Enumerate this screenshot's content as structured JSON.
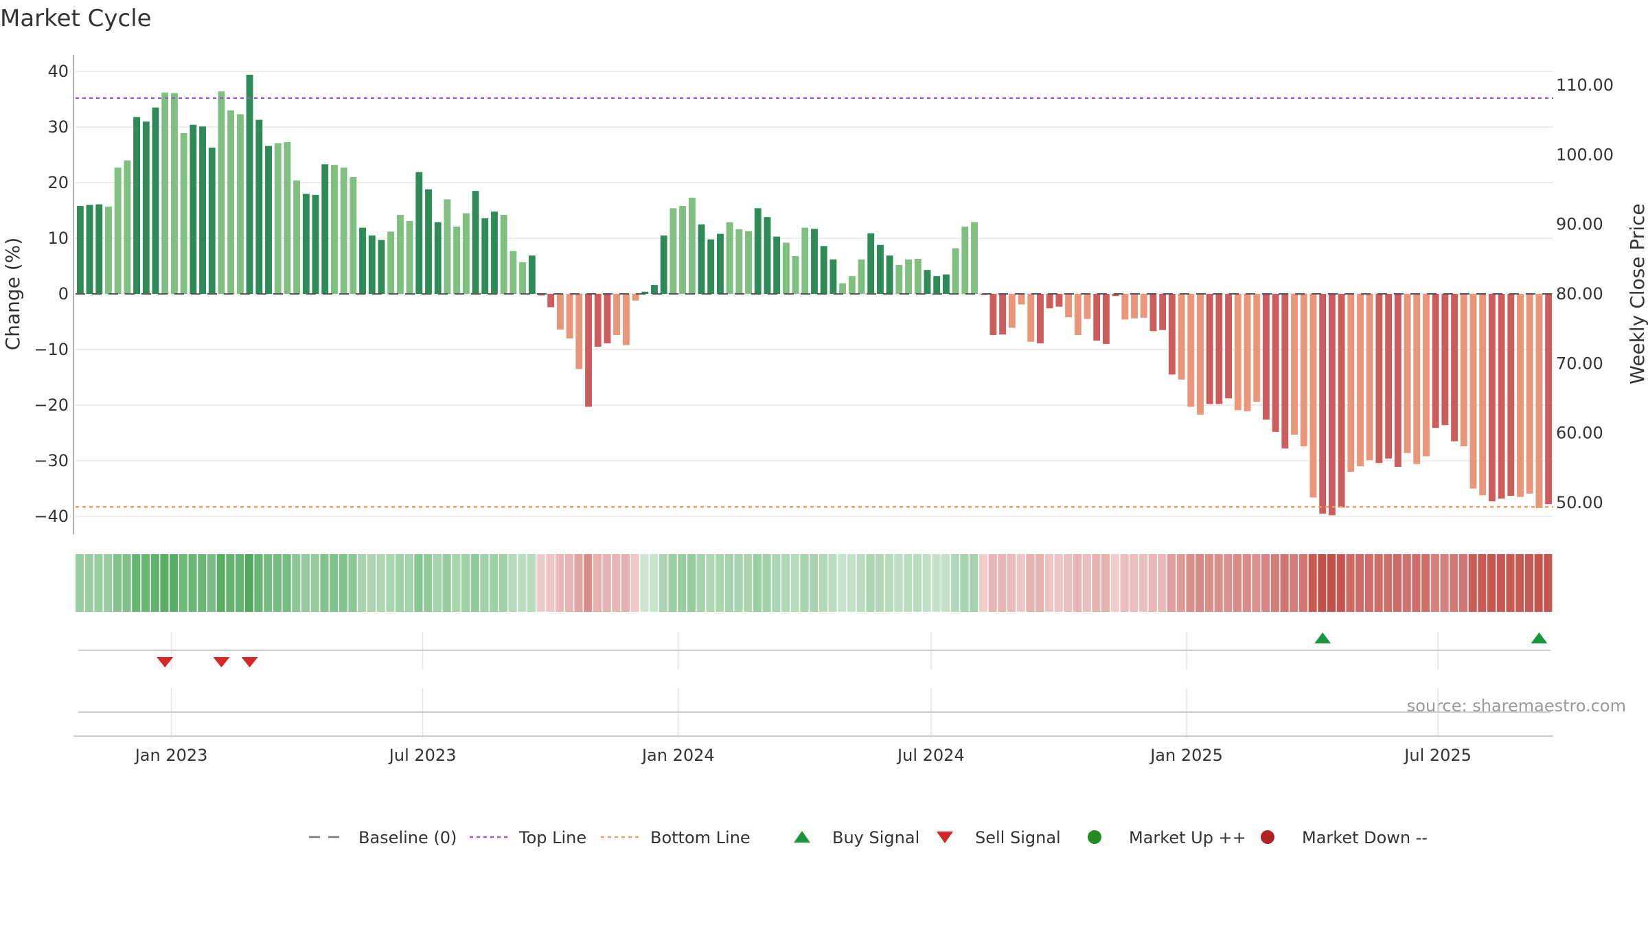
{
  "chart_data": {
    "type": "bar",
    "title": "Market Cycle",
    "ylabel_left": "Change (%)",
    "ylabel_right": "Weekly Close Price",
    "ylim_left": [
      -43,
      43
    ],
    "left_ticks": [
      40,
      30,
      20,
      10,
      0,
      -10,
      -20,
      -30,
      -40
    ],
    "left_tick_labels": [
      "40",
      "30",
      "20",
      "10",
      "0",
      "−10",
      "−20",
      "−30",
      "−40"
    ],
    "right_ticks": [
      110,
      100,
      90,
      80,
      70,
      60,
      50
    ],
    "right_tick_labels": [
      "110.00",
      "100.00",
      "90.00",
      "80.00",
      "70.00",
      "60.00",
      "50.00"
    ],
    "x_start": "2022-10-24",
    "x_end": "2025-09-22",
    "x_ticks": [
      "2023-01-01",
      "2023-07-01",
      "2024-01-01",
      "2024-07-01",
      "2025-01-01",
      "2025-07-01"
    ],
    "x_tick_labels": [
      "Jan 2023",
      "Jul 2023",
      "Jan 2024",
      "Jul 2024",
      "Jan 2025",
      "Jul 2025"
    ],
    "top_line": 35.2,
    "bottom_line": -38.3,
    "baseline": 0,
    "grid": true,
    "values": [
      15.8,
      16.0,
      16.1,
      15.7,
      22.7,
      24.0,
      31.8,
      31.0,
      33.5,
      36.2,
      36.1,
      28.9,
      30.4,
      30.1,
      26.3,
      36.4,
      33.0,
      32.3,
      39.4,
      31.3,
      26.6,
      27.1,
      27.3,
      20.4,
      18.0,
      17.8,
      23.3,
      23.2,
      22.7,
      21.0,
      11.9,
      10.5,
      9.7,
      11.2,
      14.2,
      13.1,
      21.9,
      18.8,
      12.9,
      17.0,
      12.1,
      14.5,
      18.5,
      13.6,
      14.8,
      14.2,
      7.7,
      5.7,
      6.9,
      -0.3,
      -2.4,
      -6.4,
      -8.0,
      -13.5,
      -20.3,
      -9.5,
      -8.9,
      -7.4,
      -9.2,
      -1.2,
      0.4,
      1.6,
      10.5,
      15.4,
      15.8,
      17.3,
      12.5,
      9.8,
      10.8,
      12.9,
      11.6,
      11.3,
      15.4,
      13.8,
      10.3,
      9.2,
      6.8,
      11.9,
      11.7,
      8.6,
      6.2,
      1.9,
      3.2,
      6.2,
      10.9,
      8.8,
      6.9,
      5.2,
      6.2,
      6.3,
      4.3,
      3.2,
      3.5,
      8.2,
      12.1,
      12.9,
      -0.2,
      -7.4,
      -7.3,
      -6.1,
      -1.9,
      -8.6,
      -8.9,
      -2.6,
      -2.3,
      -4.2,
      -7.4,
      -4.5,
      -8.4,
      -9.0,
      -0.4,
      -4.6,
      -4.4,
      -4.3,
      -6.7,
      -6.5,
      -14.5,
      -15.4,
      -20.3,
      -21.7,
      -19.8,
      -19.8,
      -18.8,
      -20.9,
      -21.1,
      -19.4,
      -22.6,
      -24.8,
      -27.8,
      -25.3,
      -27.4,
      -36.6,
      -39.5,
      -39.8,
      -38.4,
      -32.0,
      -31.0,
      -29.9,
      -30.4,
      -29.6,
      -31.1,
      -28.6,
      -30.6,
      -29.2,
      -24.1,
      -23.6,
      -26.5,
      -27.4,
      -35.0,
      -36.2,
      -37.3,
      -36.8,
      -36.3,
      -36.5,
      -35.9,
      -38.5,
      -37.8
    ],
    "series": [
      {
        "name": "Baseline (0)",
        "color": "#777777",
        "style": "dashed"
      },
      {
        "name": "Top Line",
        "color": "#9b59d0",
        "style": "dotted"
      },
      {
        "name": "Bottom Line",
        "color": "#e8a060",
        "style": "dotted"
      },
      {
        "name": "Buy Signal",
        "color": "#1a9641",
        "marker": "triangle-up"
      },
      {
        "name": "Sell Signal",
        "color": "#d62728",
        "marker": "triangle-down"
      },
      {
        "name": "Market Up ++",
        "color": "#228b22",
        "marker": "circle"
      },
      {
        "name": "Market Down --",
        "color": "#b22222",
        "marker": "circle"
      }
    ],
    "buy_signal_indices": [
      132,
      155
    ],
    "sell_signal_indices": [
      9,
      15,
      18
    ],
    "legend_position": "bottom-center"
  },
  "colors": {
    "positive_strong": "#2e8b57",
    "positive_light": "#7fbf7f",
    "negative_strong": "#cd5c5c",
    "negative_light": "#e9967a",
    "grid": "#e5e5e5",
    "top_line": "#9b59d0",
    "bottom_line": "#e8a060"
  },
  "source": "source: sharemaestro.com"
}
